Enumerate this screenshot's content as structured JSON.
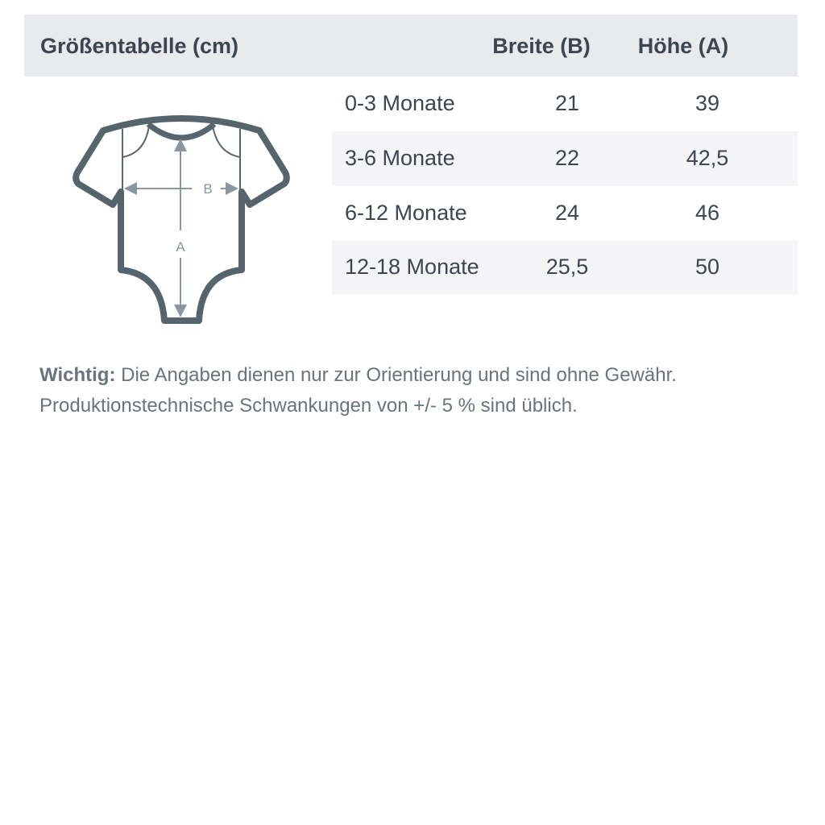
{
  "header": {
    "title": "Größentabelle (cm)",
    "col_width": "Breite (B)",
    "col_height": "Höhe (A)"
  },
  "rows": [
    {
      "size": "0-3 Monate",
      "width": "21",
      "height": "39"
    },
    {
      "size": "3-6 Monate",
      "width": "22",
      "height": "42,5"
    },
    {
      "size": "6-12 Monate",
      "width": "24",
      "height": "46"
    },
    {
      "size": "12-18 Monate",
      "width": "25,5",
      "height": "50"
    }
  ],
  "icon": {
    "name": "baby-bodysuit-icon",
    "label_width": "B",
    "label_height": "A"
  },
  "note": {
    "label": "Wichtig:",
    "line1": " Die Angaben dienen nur zur Orientierung und sind ohne Gewähr.",
    "line2": "Produktionstechnische Schwankungen von +/- 5 % sind üblich."
  },
  "colors": {
    "header_bg": "#e9eaee",
    "stripe_bg": "#f5f5f7",
    "text": "#3d4452",
    "icon": "#56646c",
    "note": "#6b7280"
  }
}
